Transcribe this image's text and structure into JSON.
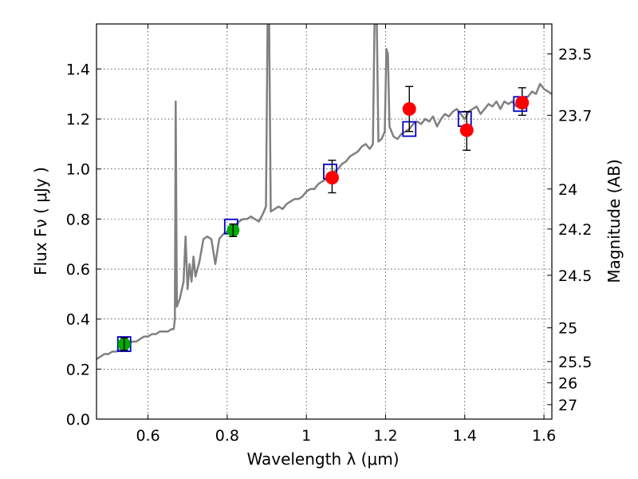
{
  "chart_data": {
    "type": "scatter",
    "title": "",
    "xlabel": "Wavelength  λ (μm)",
    "ylabel": "Flux  Fν  ( μJy )",
    "y2label": "Magnitude (AB)",
    "xlim": [
      0.47,
      1.62
    ],
    "ylim": [
      0.0,
      1.58
    ],
    "grid": true,
    "x_ticks": [
      {
        "value": 0.6,
        "label": "0.6"
      },
      {
        "value": 0.8,
        "label": "0.8"
      },
      {
        "value": 1.0,
        "label": "1"
      },
      {
        "value": 1.2,
        "label": "1.2"
      },
      {
        "value": 1.4,
        "label": "1.4"
      },
      {
        "value": 1.6,
        "label": "1.6"
      }
    ],
    "y_ticks": [
      {
        "value": 0.0,
        "label": "0.0"
      },
      {
        "value": 0.2,
        "label": "0.2"
      },
      {
        "value": 0.4,
        "label": "0.4"
      },
      {
        "value": 0.6,
        "label": "0.6"
      },
      {
        "value": 0.8,
        "label": "0.8"
      },
      {
        "value": 1.0,
        "label": "1.0"
      },
      {
        "value": 1.2,
        "label": "1.2"
      },
      {
        "value": 1.4,
        "label": "1.4"
      }
    ],
    "y2_ticks": [
      {
        "flux": 1.46,
        "label": "23.5"
      },
      {
        "flux": 1.215,
        "label": "23.7"
      },
      {
        "flux": 0.92,
        "label": "24"
      },
      {
        "flux": 0.76,
        "label": "24.2"
      },
      {
        "flux": 0.575,
        "label": "24.5"
      },
      {
        "flux": 0.365,
        "label": "25"
      },
      {
        "flux": 0.23,
        "label": "25.5"
      },
      {
        "flux": 0.145,
        "label": "26"
      },
      {
        "flux": 0.058,
        "label": "27"
      }
    ],
    "colors": {
      "spectrum": "#808080",
      "model": "#0000cc",
      "green_points": "#00aa00",
      "red_points": "#ff0000",
      "errorbar": "#000000"
    },
    "series": [
      {
        "name": "spectrum",
        "kind": "line",
        "points": [
          [
            0.47,
            0.24
          ],
          [
            0.48,
            0.25
          ],
          [
            0.49,
            0.26
          ],
          [
            0.5,
            0.26
          ],
          [
            0.51,
            0.27
          ],
          [
            0.52,
            0.27
          ],
          [
            0.53,
            0.28
          ],
          [
            0.54,
            0.3
          ],
          [
            0.55,
            0.3
          ],
          [
            0.56,
            0.31
          ],
          [
            0.57,
            0.31
          ],
          [
            0.58,
            0.32
          ],
          [
            0.59,
            0.33
          ],
          [
            0.6,
            0.33
          ],
          [
            0.61,
            0.34
          ],
          [
            0.62,
            0.34
          ],
          [
            0.63,
            0.35
          ],
          [
            0.64,
            0.35
          ],
          [
            0.65,
            0.35
          ],
          [
            0.66,
            0.36
          ],
          [
            0.665,
            0.36
          ],
          [
            0.668,
            0.4
          ],
          [
            0.67,
            1.27
          ],
          [
            0.673,
            0.45
          ],
          [
            0.68,
            0.48
          ],
          [
            0.69,
            0.55
          ],
          [
            0.695,
            0.73
          ],
          [
            0.7,
            0.52
          ],
          [
            0.705,
            0.62
          ],
          [
            0.71,
            0.55
          ],
          [
            0.715,
            0.65
          ],
          [
            0.72,
            0.57
          ],
          [
            0.73,
            0.63
          ],
          [
            0.74,
            0.72
          ],
          [
            0.75,
            0.73
          ],
          [
            0.76,
            0.72
          ],
          [
            0.77,
            0.62
          ],
          [
            0.78,
            0.72
          ],
          [
            0.79,
            0.74
          ],
          [
            0.8,
            0.75
          ],
          [
            0.81,
            0.76
          ],
          [
            0.82,
            0.77
          ],
          [
            0.83,
            0.79
          ],
          [
            0.84,
            0.8
          ],
          [
            0.85,
            0.8
          ],
          [
            0.86,
            0.81
          ],
          [
            0.87,
            0.8
          ],
          [
            0.88,
            0.79
          ],
          [
            0.89,
            0.82
          ],
          [
            0.898,
            0.85
          ],
          [
            0.902,
            1.58
          ],
          [
            0.906,
            1.58
          ],
          [
            0.91,
            0.83
          ],
          [
            0.92,
            0.84
          ],
          [
            0.93,
            0.85
          ],
          [
            0.94,
            0.84
          ],
          [
            0.95,
            0.86
          ],
          [
            0.96,
            0.87
          ],
          [
            0.97,
            0.88
          ],
          [
            0.98,
            0.88
          ],
          [
            0.99,
            0.89
          ],
          [
            1.0,
            0.91
          ],
          [
            1.01,
            0.92
          ],
          [
            1.02,
            0.92
          ],
          [
            1.03,
            0.94
          ],
          [
            1.04,
            0.95
          ],
          [
            1.05,
            0.96
          ],
          [
            1.06,
            0.98
          ],
          [
            1.07,
            0.99
          ],
          [
            1.08,
            1.0
          ],
          [
            1.09,
            1.02
          ],
          [
            1.1,
            1.03
          ],
          [
            1.11,
            1.05
          ],
          [
            1.12,
            1.06
          ],
          [
            1.13,
            1.07
          ],
          [
            1.14,
            1.09
          ],
          [
            1.15,
            1.1
          ],
          [
            1.16,
            1.08
          ],
          [
            1.168,
            1.1
          ],
          [
            1.172,
            1.58
          ],
          [
            1.178,
            1.58
          ],
          [
            1.182,
            1.11
          ],
          [
            1.19,
            1.12
          ],
          [
            1.198,
            1.15
          ],
          [
            1.202,
            1.48
          ],
          [
            1.206,
            1.46
          ],
          [
            1.21,
            1.17
          ],
          [
            1.22,
            1.13
          ],
          [
            1.23,
            1.12
          ],
          [
            1.24,
            1.14
          ],
          [
            1.25,
            1.15
          ],
          [
            1.26,
            1.16
          ],
          [
            1.27,
            1.18
          ],
          [
            1.28,
            1.19
          ],
          [
            1.29,
            1.18
          ],
          [
            1.3,
            1.2
          ],
          [
            1.31,
            1.19
          ],
          [
            1.32,
            1.21
          ],
          [
            1.33,
            1.17
          ],
          [
            1.34,
            1.2
          ],
          [
            1.35,
            1.22
          ],
          [
            1.36,
            1.21
          ],
          [
            1.37,
            1.23
          ],
          [
            1.38,
            1.24
          ],
          [
            1.39,
            1.22
          ],
          [
            1.4,
            1.2
          ],
          [
            1.41,
            1.23
          ],
          [
            1.42,
            1.24
          ],
          [
            1.43,
            1.25
          ],
          [
            1.44,
            1.22
          ],
          [
            1.45,
            1.24
          ],
          [
            1.46,
            1.26
          ],
          [
            1.47,
            1.25
          ],
          [
            1.48,
            1.27
          ],
          [
            1.49,
            1.24
          ],
          [
            1.5,
            1.27
          ],
          [
            1.51,
            1.26
          ],
          [
            1.52,
            1.27
          ],
          [
            1.53,
            1.25
          ],
          [
            1.54,
            1.26
          ],
          [
            1.55,
            1.28
          ],
          [
            1.56,
            1.29
          ],
          [
            1.57,
            1.31
          ],
          [
            1.58,
            1.3
          ],
          [
            1.59,
            1.34
          ],
          [
            1.6,
            1.32
          ],
          [
            1.61,
            1.31
          ],
          [
            1.62,
            1.3
          ]
        ]
      },
      {
        "name": "model_photometry",
        "kind": "open-square",
        "points": [
          [
            0.54,
            0.3
          ],
          [
            0.81,
            0.77
          ],
          [
            1.06,
            0.99
          ],
          [
            1.26,
            1.16
          ],
          [
            1.4,
            1.2
          ],
          [
            1.54,
            1.26
          ]
        ]
      },
      {
        "name": "observed_green",
        "kind": "filled-circle",
        "points": [
          {
            "x": 0.54,
            "y": 0.3,
            "err": 0.025
          },
          {
            "x": 0.815,
            "y": 0.755,
            "err": 0.025
          }
        ]
      },
      {
        "name": "observed_red",
        "kind": "filled-circle",
        "points": [
          {
            "x": 1.065,
            "y": 0.965,
            "err_low": 0.06,
            "err_high": 0.07
          },
          {
            "x": 1.26,
            "y": 1.24,
            "err_low": 0.09,
            "err_high": 0.09
          },
          {
            "x": 1.405,
            "y": 1.155,
            "err_low": 0.08,
            "err_high": 0.075
          },
          {
            "x": 1.545,
            "y": 1.265,
            "err_low": 0.05,
            "err_high": 0.06
          }
        ]
      }
    ]
  }
}
